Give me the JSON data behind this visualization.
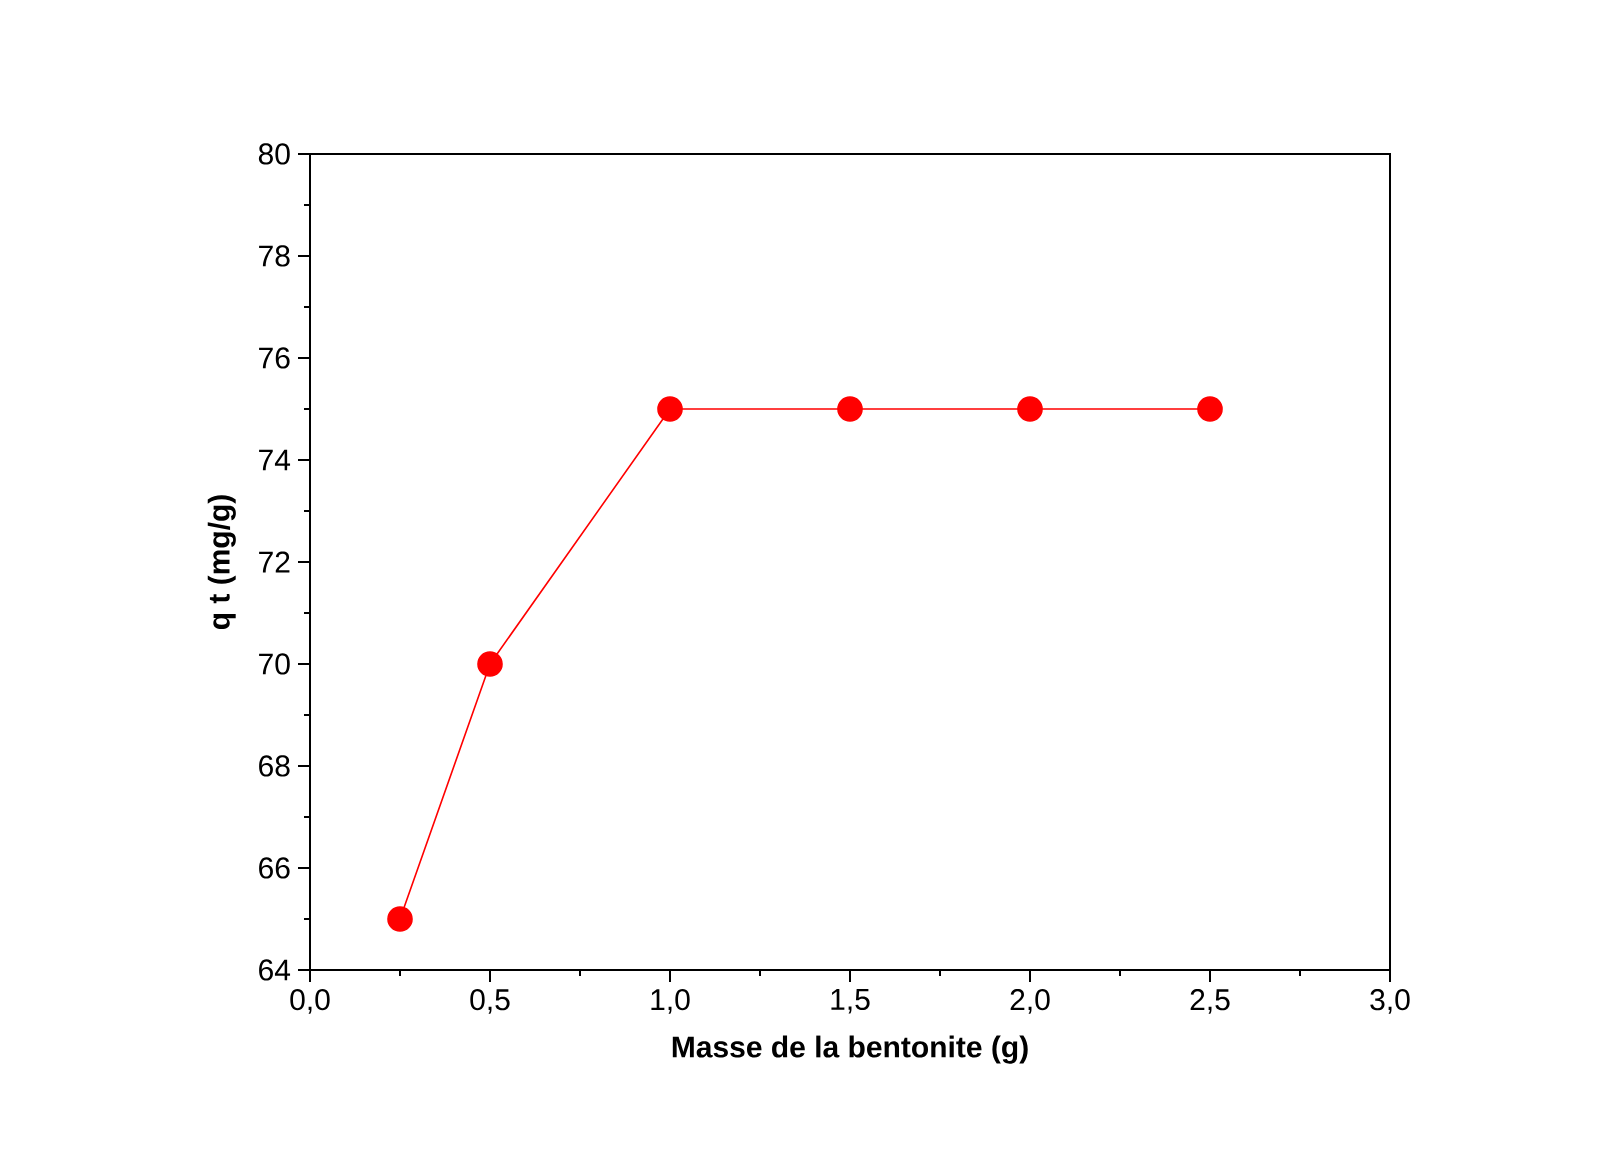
{
  "chart_data": {
    "type": "line",
    "xlabel": "Masse de la bentonite (g)",
    "ylabel": "q t (mg/g)",
    "x": [
      0.25,
      0.5,
      1.0,
      1.5,
      2.0,
      2.5
    ],
    "series": [
      {
        "color": "#ff0000",
        "values": [
          65,
          70,
          75,
          75,
          75,
          75
        ]
      }
    ],
    "marker": "circle",
    "line_style": "solid",
    "grid": false,
    "xlim": [
      0,
      3
    ],
    "xticks": [
      {
        "value": 0,
        "label": "0,0"
      },
      {
        "value": 0.5,
        "label": "0,5"
      },
      {
        "value": 1,
        "label": "1,0"
      },
      {
        "value": 1.5,
        "label": "1,5"
      },
      {
        "value": 2,
        "label": "2,0"
      },
      {
        "value": 2.5,
        "label": "2,5"
      },
      {
        "value": 3,
        "label": "3,0"
      }
    ],
    "ylim": [
      64,
      80
    ],
    "yticks": [
      64,
      66,
      68,
      70,
      72,
      74,
      76,
      78,
      80
    ]
  }
}
